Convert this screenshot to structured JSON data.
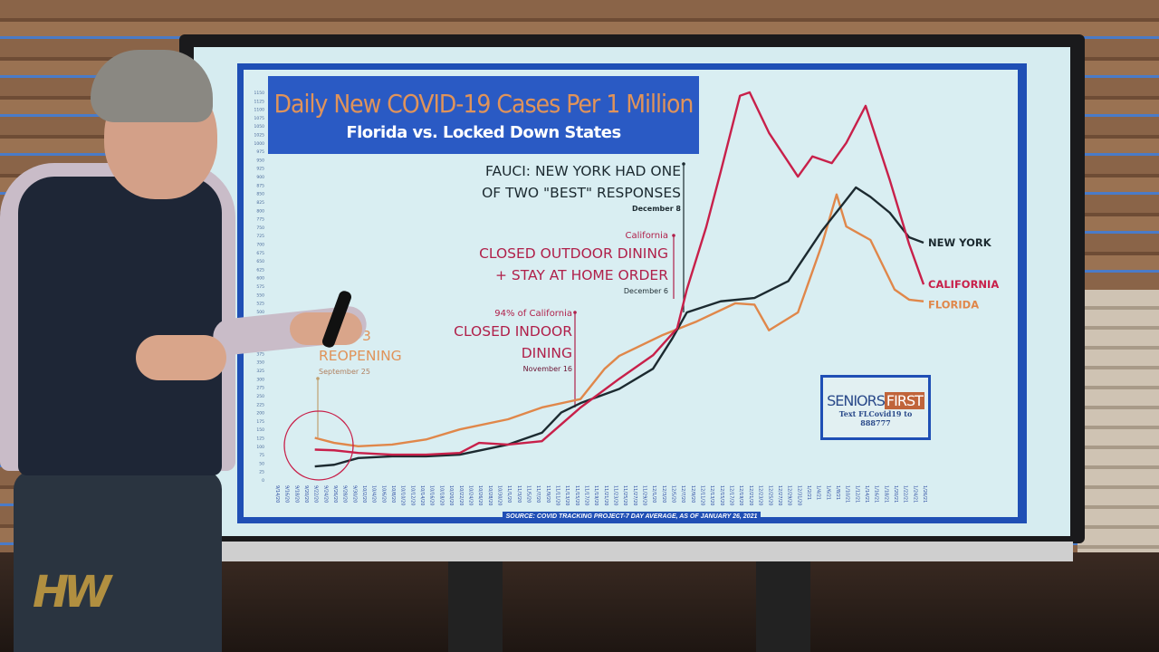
{
  "chart_data": {
    "type": "line",
    "title": "Daily New COVID-19 Cases Per 1 Million",
    "subtitle": "Florida vs. Locked Down States",
    "xlabel": "",
    "ylabel": "",
    "ylim": [
      0,
      1150
    ],
    "ytick_step": 25,
    "grid": false,
    "x_ticks": [
      "9/14/20",
      "9/16/20",
      "9/18/20",
      "9/20/20",
      "9/22/20",
      "9/24/20",
      "9/26/20",
      "9/28/20",
      "9/30/20",
      "10/2/20",
      "10/4/20",
      "10/6/20",
      "10/8/20",
      "10/10/20",
      "10/12/20",
      "10/14/20",
      "10/16/20",
      "10/18/20",
      "10/20/20",
      "10/22/20",
      "10/24/20",
      "10/26/20",
      "10/28/20",
      "10/30/20",
      "11/1/20",
      "11/3/20",
      "11/5/20",
      "11/7/20",
      "11/9/20",
      "11/11/20",
      "11/13/20",
      "11/15/20",
      "11/17/20",
      "11/19/20",
      "11/21/20",
      "11/23/20",
      "11/25/20",
      "11/27/20",
      "11/29/20",
      "12/1/20",
      "12/3/20",
      "12/5/20",
      "12/7/20",
      "12/9/20",
      "12/11/20",
      "12/13/20",
      "12/15/20",
      "12/17/20",
      "12/19/20",
      "12/21/20",
      "12/23/20",
      "12/25/20",
      "12/27/20",
      "12/29/20",
      "12/31/20",
      "1/2/21",
      "1/4/21",
      "1/6/21",
      "1/8/21",
      "1/10/21",
      "1/12/21",
      "1/14/21",
      "1/16/21",
      "1/18/21",
      "1/20/21",
      "1/22/21",
      "1/24/21",
      "1/26/21"
    ],
    "series": [
      {
        "name": "FLORIDA",
        "color": "#e0874a",
        "x": [
          "9/22/20",
          "9/26/20",
          "10/1/20",
          "10/8/20",
          "10/15/20",
          "10/22/20",
          "11/1/20",
          "11/8/20",
          "11/16/20",
          "11/21/20",
          "11/24/20",
          "12/3/20",
          "12/10/20",
          "12/18/20",
          "12/22/20",
          "12/25/20",
          "12/31/20",
          "1/5/21",
          "1/8/21",
          "1/10/21",
          "1/15/21",
          "1/20/21",
          "1/23/21",
          "1/26/21"
        ],
        "values": [
          125,
          110,
          100,
          105,
          120,
          150,
          180,
          215,
          240,
          330,
          368,
          430,
          470,
          524,
          520,
          444,
          497,
          700,
          847,
          752,
          712,
          565,
          535,
          530
        ]
      },
      {
        "name": "NEW YORK",
        "color": "#1c2a30",
        "x": [
          "9/22/20",
          "9/26/20",
          "10/1/20",
          "10/8/20",
          "10/15/20",
          "10/22/20",
          "11/1/20",
          "11/8/20",
          "11/12/20",
          "11/16/20",
          "11/24/20",
          "12/1/20",
          "12/5/20",
          "12/8/20",
          "12/15/20",
          "12/22/20",
          "12/29/20",
          "1/5/21",
          "1/12/21",
          "1/15/21",
          "1/19/21",
          "1/23/21",
          "1/26/21"
        ],
        "values": [
          40,
          45,
          65,
          70,
          70,
          75,
          105,
          140,
          200,
          228,
          270,
          330,
          420,
          497,
          530,
          540,
          590,
          740,
          868,
          840,
          793,
          720,
          704
        ]
      },
      {
        "name": "CALIFORNIA",
        "color": "#c8204a",
        "x": [
          "9/22/20",
          "9/26/20",
          "10/1/20",
          "10/8/20",
          "10/15/20",
          "10/22/20",
          "10/26/20",
          "11/1/20",
          "11/8/20",
          "11/16/20",
          "11/24/20",
          "12/1/20",
          "12/6/20",
          "12/8/20",
          "12/12/20",
          "12/15/20",
          "12/19/20",
          "12/21/20",
          "12/25/20",
          "12/31/20",
          "1/3/21",
          "1/7/21",
          "1/10/21",
          "1/14/21",
          "1/19/21",
          "1/23/21",
          "1/26/21"
        ],
        "values": [
          90,
          88,
          80,
          75,
          75,
          80,
          110,
          105,
          115,
          215,
          300,
          370,
          450,
          565,
          750,
          914,
          1140,
          1150,
          1030,
          900,
          960,
          940,
          1000,
          1110,
          890,
          700,
          580
        ]
      }
    ],
    "annotations": {
      "fauci_line1": "FAUCI: NEW YORK HAD ONE",
      "fauci_line2": "OF TWO \"BEST\" RESPONSES",
      "fauci_date": "December 8",
      "ca_outdoor_who": "California",
      "ca_outdoor_line1": "CLOSED OUTDOOR DINING",
      "ca_outdoor_line2": "+ STAY AT HOME ORDER",
      "ca_outdoor_date": "December 6",
      "ca_indoor_who": "94% of California",
      "ca_indoor_line1": "CLOSED INDOOR",
      "ca_indoor_line2": "DINING",
      "ca_indoor_date": "November 16",
      "fl_phase": "3",
      "fl_reopening": "REOPENING",
      "fl_date": "September 25"
    },
    "source": "SOURCE: COVID TRACKING PROJECT-7 DAY AVERAGE, AS OF JANUARY 26, 2021"
  },
  "badge": {
    "brand_a": "SENIORS",
    "brand_b": "FIRST",
    "cta": "Text FLCovid19 to 888777"
  },
  "watermark": "HW"
}
